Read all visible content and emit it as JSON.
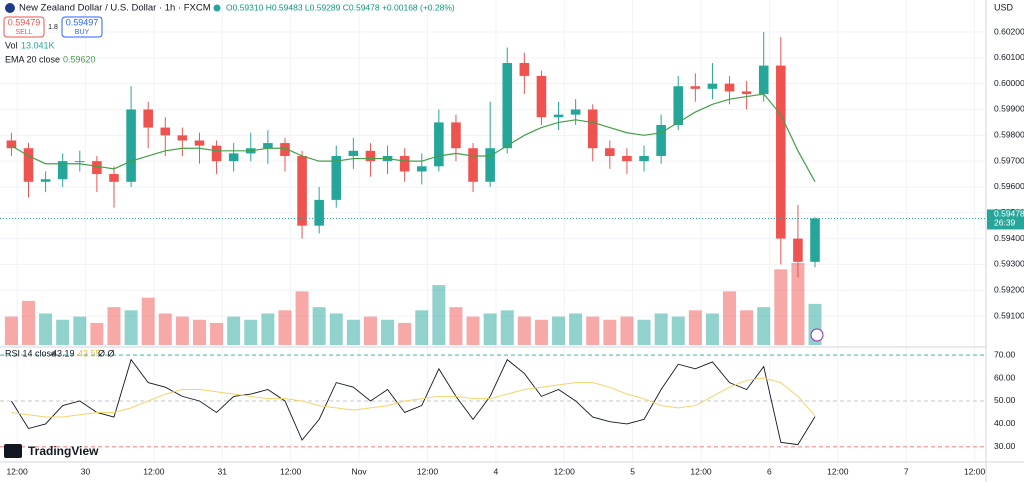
{
  "header": {
    "symbol": "New Zealand Dollar / U.S. Dollar · 1h · FXCM",
    "ohlc": "O0.59310 H0.59483 L0.59289 C0.59478 +0.00168 (+0.28%)",
    "sell": {
      "price": "0.59479",
      "label": "SELL"
    },
    "spread": "1.8",
    "buy": {
      "price": "0.59497",
      "label": "BUY"
    },
    "volume_value": "13.041K",
    "ema_value": "0.59620",
    "rsi_extra": "Ø Ø",
    "currency": "USD",
    "countdown": "26:39",
    "brand": "TradingView"
  },
  "chart_data": [
    {
      "type": "candlestick",
      "x": [
        -1,
        2,
        5,
        8,
        11,
        14,
        17,
        20,
        23,
        26,
        29,
        32,
        35,
        38,
        41,
        44,
        47,
        50,
        53,
        56,
        59,
        62,
        65,
        68,
        71,
        74,
        77,
        80,
        83,
        86,
        89,
        92,
        95,
        98,
        101,
        104,
        107,
        110,
        113,
        116,
        119,
        122,
        125,
        128,
        131,
        134,
        137,
        140
      ],
      "open": [
        0.5978,
        0.5975,
        0.5962,
        0.5963,
        0.597,
        0.597,
        0.5965,
        0.5962,
        0.599,
        0.5983,
        0.598,
        0.5978,
        0.5976,
        0.597,
        0.5973,
        0.5975,
        0.5977,
        0.5972,
        0.5945,
        0.5955,
        0.5972,
        0.5974,
        0.597,
        0.5972,
        0.5966,
        0.5968,
        0.5985,
        0.5975,
        0.5962,
        0.5975,
        0.6008,
        0.6003,
        0.5987,
        0.5988,
        0.599,
        0.5975,
        0.5972,
        0.597,
        0.5972,
        0.5984,
        0.5999,
        0.5998,
        0.6,
        0.5997,
        0.5996,
        0.6007,
        0.594,
        0.5931
      ],
      "high": [
        0.5981,
        0.5977,
        0.5966,
        0.5973,
        0.5974,
        0.5972,
        0.5968,
        0.5999,
        0.5993,
        0.5987,
        0.5983,
        0.5981,
        0.5978,
        0.5977,
        0.5981,
        0.5982,
        0.5979,
        0.5974,
        0.596,
        0.5976,
        0.5979,
        0.5977,
        0.5976,
        0.5975,
        0.5973,
        0.599,
        0.5988,
        0.5977,
        0.5993,
        0.6014,
        0.6012,
        0.6005,
        0.5993,
        0.5994,
        0.5992,
        0.5978,
        0.5975,
        0.5976,
        0.5988,
        0.6003,
        0.6004,
        0.6008,
        0.6003,
        0.6001,
        0.602,
        0.6018,
        0.5953,
        0.59483
      ],
      "low": [
        0.5972,
        0.5956,
        0.5958,
        0.596,
        0.5966,
        0.5958,
        0.5952,
        0.596,
        0.5975,
        0.5972,
        0.5972,
        0.5969,
        0.5965,
        0.5966,
        0.597,
        0.5969,
        0.5966,
        0.594,
        0.5942,
        0.5952,
        0.5967,
        0.5964,
        0.5965,
        0.5962,
        0.5961,
        0.5966,
        0.597,
        0.5958,
        0.596,
        0.5973,
        0.5996,
        0.5984,
        0.5982,
        0.5984,
        0.597,
        0.5967,
        0.5965,
        0.5966,
        0.5969,
        0.5982,
        0.5993,
        0.5994,
        0.5992,
        0.599,
        0.5993,
        0.593,
        0.5925,
        0.59289
      ],
      "close": [
        0.5975,
        0.5962,
        0.5963,
        0.597,
        0.597,
        0.5965,
        0.5962,
        0.599,
        0.5983,
        0.598,
        0.5978,
        0.5976,
        0.597,
        0.5973,
        0.5975,
        0.5977,
        0.5972,
        0.5945,
        0.5955,
        0.5972,
        0.5974,
        0.597,
        0.5972,
        0.5966,
        0.5968,
        0.5985,
        0.5975,
        0.5962,
        0.5975,
        0.6008,
        0.6003,
        0.5987,
        0.5988,
        0.599,
        0.5975,
        0.5972,
        0.597,
        0.5972,
        0.5984,
        0.5999,
        0.5998,
        0.6,
        0.5997,
        0.5996,
        0.6007,
        0.594,
        0.5931,
        0.59478
      ],
      "up_color": "#26a69a",
      "down_color": "#ef5350",
      "series": [
        {
          "name": "Vol",
          "values": [
            9000,
            14000,
            10000,
            8000,
            9000,
            7000,
            12000,
            11000,
            15000,
            10000,
            9000,
            8000,
            7000,
            9000,
            8000,
            10000,
            11000,
            17000,
            12000,
            10000,
            8000,
            9000,
            8000,
            7000,
            11000,
            19000,
            12000,
            9000,
            10000,
            11000,
            9000,
            8000,
            9000,
            10000,
            9000,
            8000,
            9000,
            8000,
            10000,
            9000,
            11000,
            10000,
            17000,
            11000,
            12000,
            24000,
            26000,
            13041
          ]
        },
        {
          "name": "EMA 20 close",
          "color": "#43a047",
          "values": [
            0.5976,
            0.5972,
            0.5969,
            0.5969,
            0.5969,
            0.5968,
            0.5967,
            0.597,
            0.5972,
            0.5974,
            0.5975,
            0.5975,
            0.5974,
            0.5974,
            0.5974,
            0.5975,
            0.5975,
            0.5972,
            0.597,
            0.597,
            0.5971,
            0.5971,
            0.5971,
            0.597,
            0.597,
            0.5972,
            0.5973,
            0.5972,
            0.5972,
            0.5976,
            0.598,
            0.5983,
            0.5985,
            0.5986,
            0.5985,
            0.5983,
            0.5981,
            0.598,
            0.5981,
            0.5985,
            0.5989,
            0.5992,
            0.5994,
            0.5995,
            0.5996,
            0.5988,
            0.5974,
            0.5962
          ]
        }
      ],
      "xlim": [
        -3,
        170
      ],
      "xticks": [
        {
          "value": 0,
          "label": "12:00"
        },
        {
          "value": 12,
          "label": "30"
        },
        {
          "value": 24,
          "label": "12:00"
        },
        {
          "value": 36,
          "label": "31"
        },
        {
          "value": 48,
          "label": "12:00"
        },
        {
          "value": 60,
          "label": "Nov"
        },
        {
          "value": 72,
          "label": "12:00"
        },
        {
          "value": 84,
          "label": "4"
        },
        {
          "value": 96,
          "label": "12:00"
        },
        {
          "value": 108,
          "label": "5"
        },
        {
          "value": 120,
          "label": "12:00"
        },
        {
          "value": 132,
          "label": "6"
        },
        {
          "value": 144,
          "label": "12:00"
        },
        {
          "value": 156,
          "label": "7"
        },
        {
          "value": 168,
          "label": "12:00"
        }
      ],
      "ylim": [
        0.58988,
        0.60324
      ],
      "yticks": [
        {
          "value": 0.591,
          "label": "0.59100"
        },
        {
          "value": 0.592,
          "label": "0.59200"
        },
        {
          "value": 0.593,
          "label": "0.59300"
        },
        {
          "value": 0.594,
          "label": "0.59400"
        },
        {
          "value": 0.595,
          "label": "0.59500"
        },
        {
          "value": 0.596,
          "label": "0.59600"
        },
        {
          "value": 0.597,
          "label": "0.59700"
        },
        {
          "value": 0.598,
          "label": "0.59800"
        },
        {
          "value": 0.599,
          "label": "0.59900"
        },
        {
          "value": 0.6,
          "label": "0.60000"
        },
        {
          "value": 0.601,
          "label": "0.60100"
        },
        {
          "value": 0.602,
          "label": "0.60200"
        }
      ],
      "grid": true
    },
    {
      "type": "line",
      "title": "RSI 14 close",
      "series": [
        {
          "color": "#131722",
          "values": [
            50,
            38,
            40,
            48,
            50,
            45,
            43,
            68,
            58,
            56,
            52,
            50,
            45,
            52,
            53,
            55,
            50,
            33,
            42,
            58,
            56,
            50,
            55,
            45,
            48,
            64,
            52,
            42,
            52,
            68,
            62,
            52,
            55,
            50,
            43,
            41,
            40,
            42,
            55,
            66,
            64,
            67,
            58,
            55,
            65,
            32,
            31,
            43.19
          ]
        },
        {
          "color": "#f2d46a",
          "values": [
            45,
            44,
            43,
            43,
            44,
            45,
            45,
            47,
            50,
            53,
            55,
            55,
            54,
            53,
            52,
            51,
            51,
            50,
            48,
            47,
            46,
            47,
            48,
            50,
            51,
            52,
            52,
            51,
            51,
            53,
            55,
            56,
            57,
            58,
            58,
            56,
            53,
            51,
            48,
            47,
            48,
            52,
            56,
            59,
            60,
            58,
            52,
            43.55
          ]
        }
      ],
      "ylim": [
        24.3,
        72.2
      ],
      "yticks": [
        {
          "value": 30,
          "label": "30.00"
        },
        {
          "value": 40,
          "label": "40.00"
        },
        {
          "value": 50,
          "label": "50.00"
        },
        {
          "value": 60,
          "label": "60.00"
        },
        {
          "value": 70,
          "label": "70.00"
        }
      ],
      "level_lines": [
        70,
        50,
        30
      ]
    }
  ]
}
